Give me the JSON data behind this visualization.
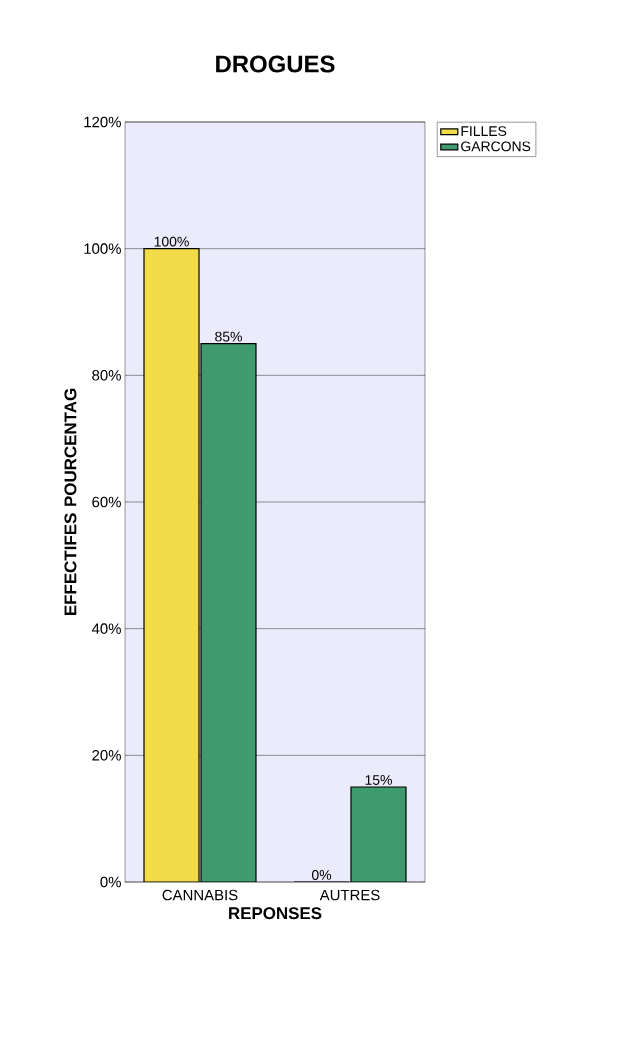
{
  "chart_data": {
    "type": "bar",
    "title": "DROGUES",
    "xlabel": "REPONSES",
    "ylabel": "EFFECTIFES POURCENTAG",
    "categories": [
      "CANNABIS",
      "AUTRES"
    ],
    "series": [
      {
        "name": "FILLES",
        "color": "#f2dc4a",
        "values": [
          100,
          0
        ],
        "value_labels": [
          "100%",
          "0%"
        ]
      },
      {
        "name": "GARCONS",
        "color": "#3f9a6e",
        "values": [
          85,
          15
        ],
        "value_labels": [
          "85%",
          "15%"
        ]
      }
    ],
    "ylim": [
      0,
      120
    ],
    "yticks": [
      {
        "value": 0,
        "label": "0%"
      },
      {
        "value": 20,
        "label": "20%"
      },
      {
        "value": 40,
        "label": "40%"
      },
      {
        "value": 60,
        "label": "60%"
      },
      {
        "value": 80,
        "label": "80%"
      },
      {
        "value": 100,
        "label": "100%"
      },
      {
        "value": 120,
        "label": "120%"
      }
    ],
    "grid": "y",
    "legend": "right"
  }
}
